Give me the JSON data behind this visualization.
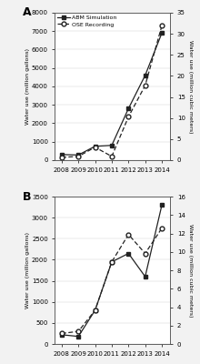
{
  "years": [
    2008,
    2009,
    2010,
    2011,
    2012,
    2013,
    2014
  ],
  "panel_A": {
    "abm": [
      300,
      280,
      750,
      800,
      2800,
      4600,
      6900
    ],
    "ose": [
      150,
      200,
      700,
      200,
      2350,
      4050,
      7300
    ],
    "ylim_left": [
      0,
      8000
    ],
    "ylim_right": [
      0,
      35
    ],
    "yticks_left": [
      0,
      1000,
      2000,
      3000,
      4000,
      5000,
      6000,
      7000,
      8000
    ],
    "yticks_right": [
      0,
      5,
      10,
      15,
      20,
      25,
      30,
      35
    ],
    "ylabel_left": "Water use (million gallons)",
    "ylabel_right": "Water use (million cubic meters)",
    "label": "A",
    "show_legend": true
  },
  "panel_B": {
    "abm": [
      220,
      180,
      800,
      1950,
      2150,
      1600,
      3300
    ],
    "ose": [
      250,
      300,
      800,
      1950,
      2600,
      2150,
      2750
    ],
    "ylim_left": [
      0,
      3500
    ],
    "ylim_right": [
      0,
      16
    ],
    "yticks_left": [
      0,
      500,
      1000,
      1500,
      2000,
      2500,
      3000,
      3500
    ],
    "yticks_right": [
      0,
      2,
      4,
      6,
      8,
      10,
      12,
      14,
      16
    ],
    "ylabel_left": "Water use (million gallons)",
    "ylabel_right": "Water use (million cubic meters)",
    "label": "B",
    "show_legend": false
  },
  "legend_abm": "ABM Simulation",
  "legend_ose": "OSE Recording",
  "bg_color": "#f2f2f2",
  "plot_bg": "#ffffff",
  "line_color": "#222222",
  "xticks": [
    2008,
    2009,
    2010,
    2011,
    2012,
    2013,
    2014
  ]
}
